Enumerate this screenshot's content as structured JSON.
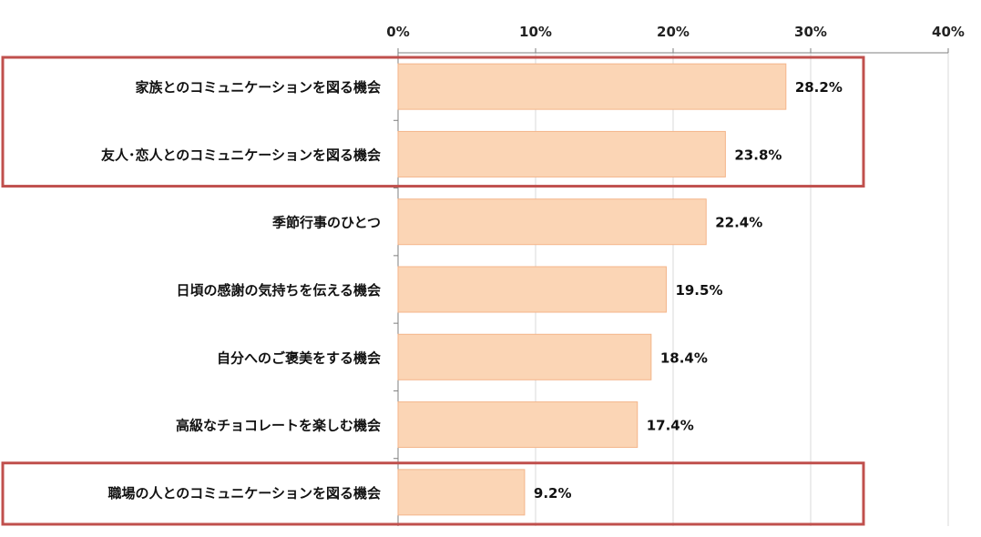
{
  "chart_data": {
    "type": "bar",
    "orientation": "horizontal",
    "categories": [
      "家族とのコミュニケーションを図る機会",
      "友人･恋人とのコミュニケーションを図る機会",
      "季節行事のひとつ",
      "日頃の感謝の気持ちを伝える機会",
      "自分へのご褒美をする機会",
      "高級なチョコレートを楽しむ機会",
      "職場の人とのコミュニケーションを図る機会"
    ],
    "values": [
      28.2,
      23.8,
      22.4,
      19.5,
      18.4,
      17.4,
      9.2
    ],
    "value_labels": [
      "28.2%",
      "23.8%",
      "22.4%",
      "19.5%",
      "18.4%",
      "17.4%",
      "9.2%"
    ],
    "xlim": [
      0,
      40
    ],
    "xticks": [
      0,
      10,
      20,
      30,
      40
    ],
    "xtick_labels": [
      "0%",
      "10%",
      "20%",
      "30%",
      "40%"
    ],
    "axis_position": "top",
    "grid": true,
    "title": "",
    "xlabel": "",
    "ylabel": "",
    "highlighted_groups": [
      [
        0,
        1
      ],
      [
        6
      ]
    ],
    "colors": {
      "bar_fill": "#FBD5B5",
      "bar_stroke": "#F4B58A",
      "highlight_box": "#C0504D",
      "grid": "#D9D9D9",
      "axis": "#7F7F7F"
    }
  }
}
